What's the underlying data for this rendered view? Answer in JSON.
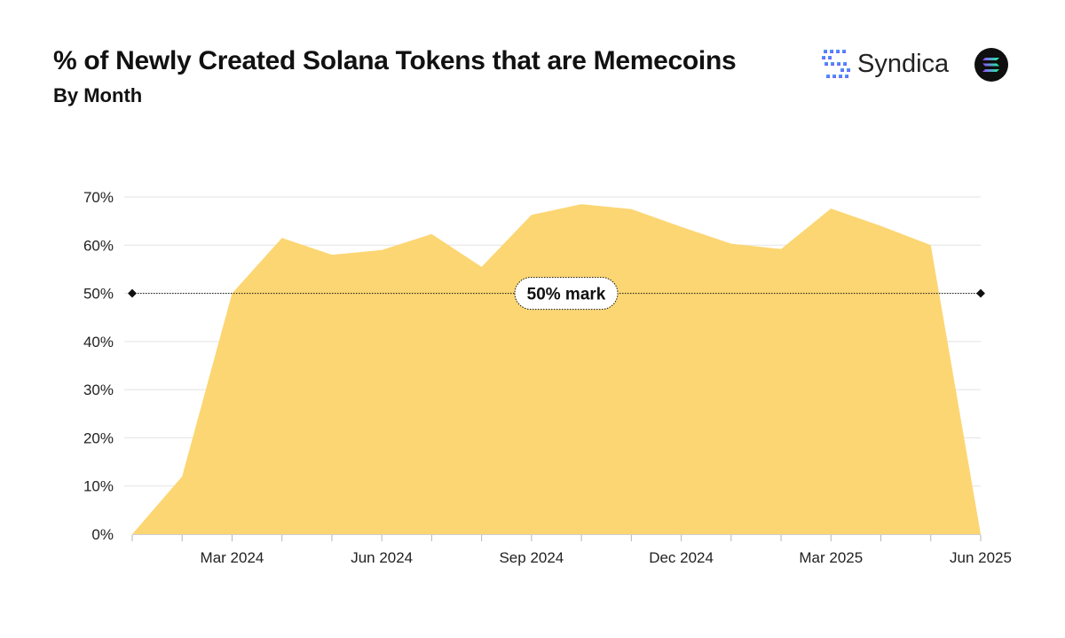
{
  "header": {
    "title": "% of Newly Created Solana Tokens that are Memecoins",
    "subtitle": "By Month",
    "brand_name": "Syndica",
    "brand_icon": "syndica-logo-icon",
    "partner_icon": "solana-logo-icon"
  },
  "colors": {
    "area": "#fcd673",
    "grid": "#e3e3e3",
    "text": "#111111",
    "brand_gradient": [
      "#3bb3f5",
      "#7c4dff"
    ]
  },
  "chart_data": {
    "type": "area",
    "title": "% of Newly Created Solana Tokens that are Memecoins",
    "subtitle": "By Month",
    "xlabel": "",
    "ylabel": "",
    "x": [
      "2024-01",
      "2024-02",
      "2024-03",
      "2024-04",
      "2024-05",
      "2024-06",
      "2024-07",
      "2024-08",
      "2024-09",
      "2024-10",
      "2024-11",
      "2024-12",
      "2025-01",
      "2025-02",
      "2025-03",
      "2025-04",
      "2025-05",
      "2025-06"
    ],
    "values": [
      0,
      0.12,
      0.5,
      0.615,
      0.58,
      0.59,
      0.623,
      0.555,
      0.663,
      0.685,
      0.675,
      0.638,
      0.603,
      0.592,
      0.676,
      0.64,
      0.6,
      0
    ],
    "ylim": [
      0,
      0.7
    ],
    "yticks": [
      0,
      0.1,
      0.2,
      0.3,
      0.4,
      0.5,
      0.6,
      0.7
    ],
    "ytick_labels": [
      "0%",
      "10%",
      "20%",
      "30%",
      "40%",
      "50%",
      "60%",
      "70%"
    ],
    "xtick_labels": [
      {
        "x": "2024-03",
        "label": "Mar 2024"
      },
      {
        "x": "2024-06",
        "label": "Jun 2024"
      },
      {
        "x": "2024-09",
        "label": "Sep 2024"
      },
      {
        "x": "2024-12",
        "label": "Dec 2024"
      },
      {
        "x": "2025-03",
        "label": "Mar 2025"
      },
      {
        "x": "2025-06",
        "label": "Jun 2025"
      }
    ],
    "grid": true,
    "reference_line": {
      "y": 0.5,
      "label": "50% mark"
    }
  }
}
